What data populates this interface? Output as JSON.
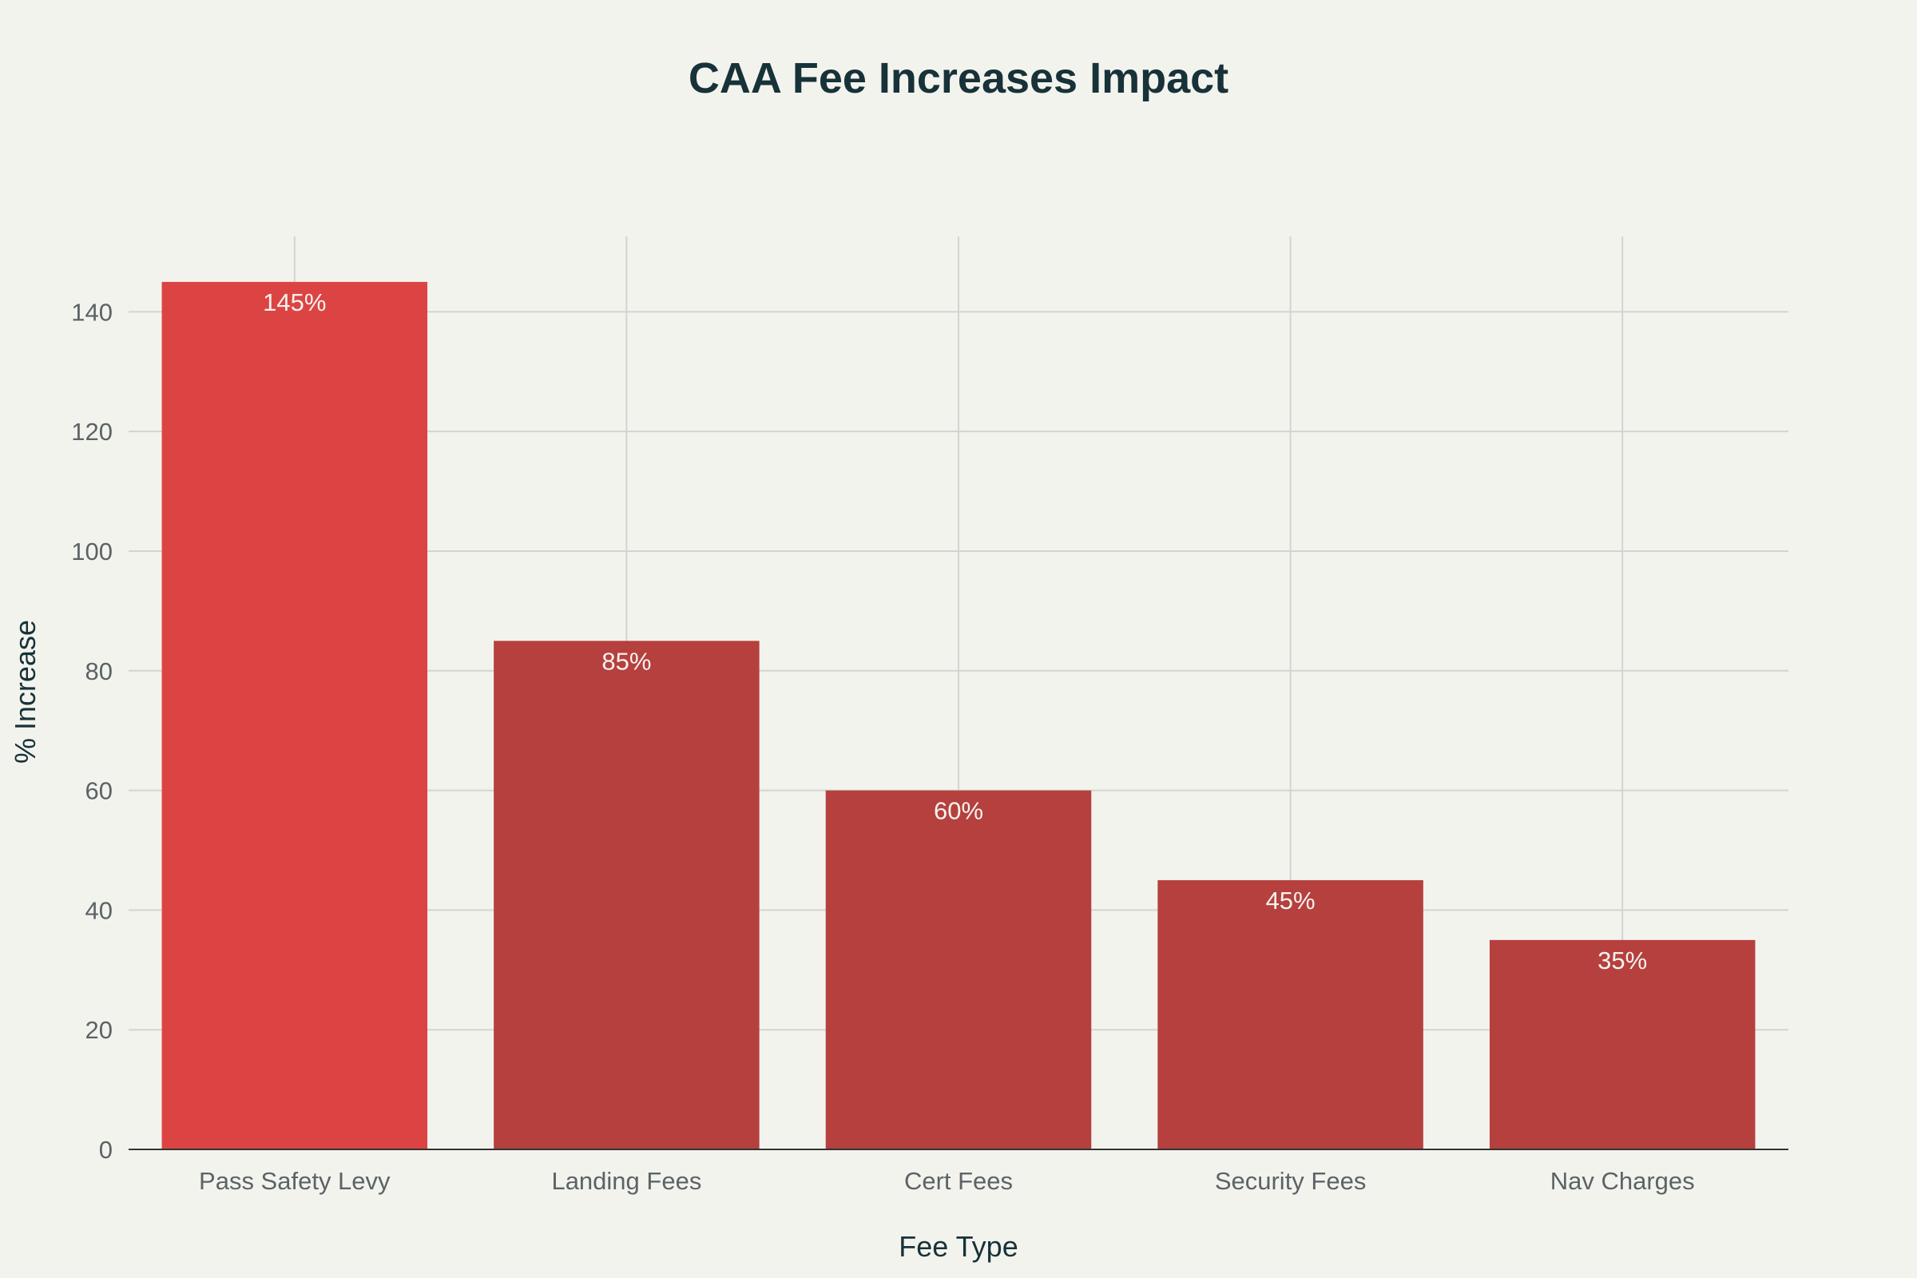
{
  "chart_data": {
    "type": "bar",
    "title": "CAA Fee Increases Impact",
    "xlabel": "Fee Type",
    "ylabel": "% Increase",
    "categories": [
      "Pass Safety Levy",
      "Landing Fees",
      "Cert Fees",
      "Security Fees",
      "Nav Charges"
    ],
    "values": [
      145,
      85,
      60,
      45,
      35
    ],
    "data_labels": [
      "145%",
      "85%",
      "60%",
      "45%",
      "35%"
    ],
    "colors": [
      "#dc4444",
      "#b5403d",
      "#b5403d",
      "#b5403d",
      "#b5403d"
    ],
    "ylim": [
      0,
      152.6
    ],
    "yticks": [
      0,
      20,
      40,
      60,
      80,
      100,
      120,
      140
    ],
    "grid": true,
    "legend": "none"
  }
}
